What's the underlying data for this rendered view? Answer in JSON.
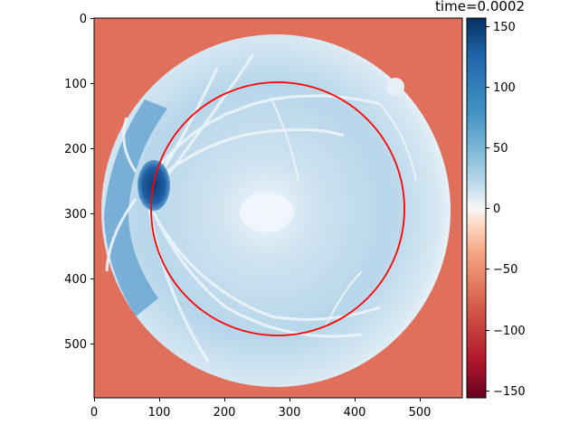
{
  "figure": {
    "title": "time=0.0002",
    "colormap": "RdBu",
    "background_color": "#e0705c",
    "overlay_circle_color": "#ff0000"
  },
  "axes": {
    "xlim": [
      0,
      565
    ],
    "ylim": [
      584,
      0
    ],
    "x_ticks": [
      "0",
      "100",
      "200",
      "300",
      "400",
      "500"
    ],
    "y_ticks": [
      "0",
      "100",
      "200",
      "300",
      "400",
      "500"
    ]
  },
  "colorbar": {
    "range": [
      -155,
      155
    ],
    "ticks": [
      "150",
      "100",
      "50",
      "0",
      "−50",
      "−100",
      "−150"
    ]
  },
  "image": {
    "description_icon": "retina-fundus-image",
    "overlay": "red-circle"
  }
}
